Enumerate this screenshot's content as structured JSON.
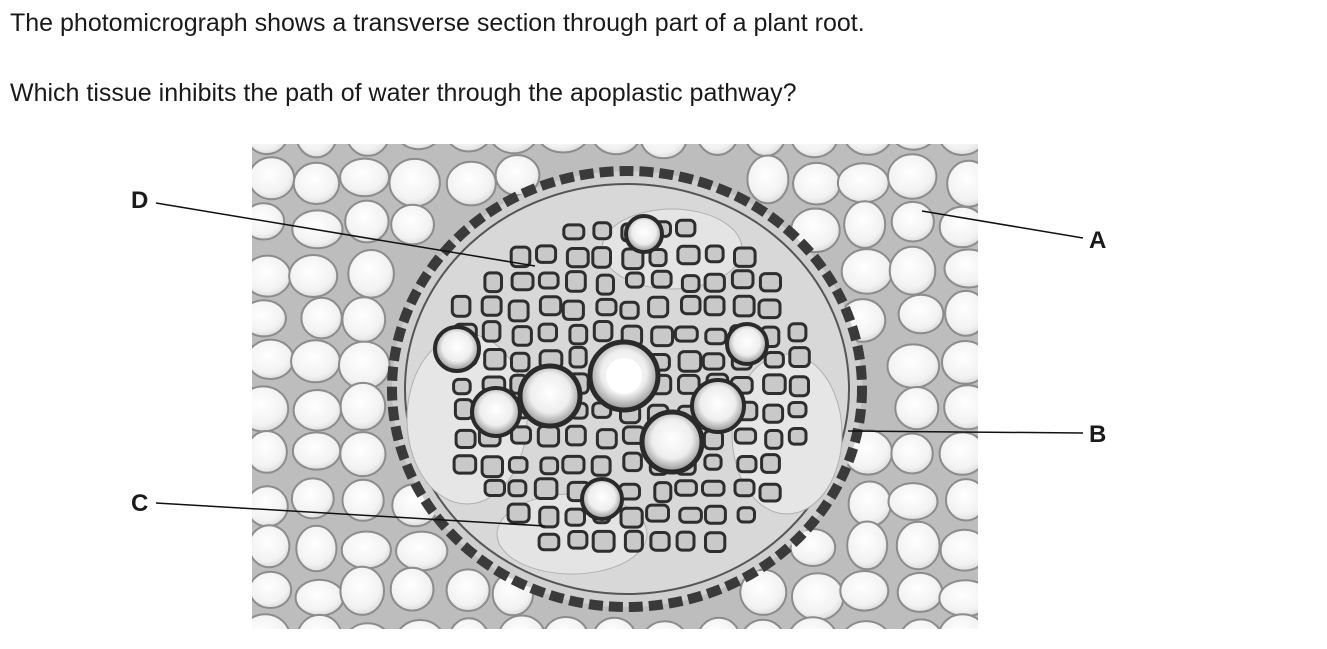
{
  "question": {
    "intro": "The photomicrograph shows a transverse section through part of a plant root.",
    "prompt": "Which tissue inhibits the path of water through the apoplastic pathway?"
  },
  "figure": {
    "labels": {
      "a": "A",
      "b": "B",
      "c": "C",
      "d": "D"
    }
  }
}
